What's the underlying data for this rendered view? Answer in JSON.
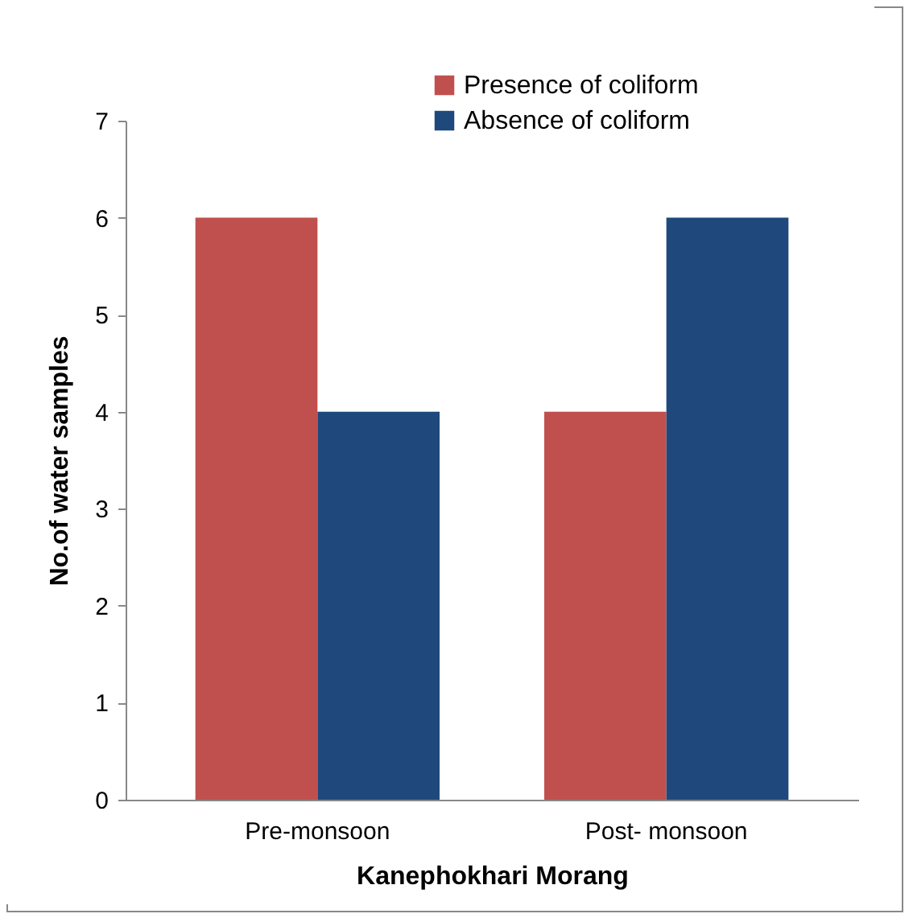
{
  "chart_data": {
    "type": "bar",
    "xlabel": "Kanephokhari Morang",
    "ylabel": "No.of water samples",
    "categories": [
      "Pre-monsoon",
      "Post- monsoon"
    ],
    "series": [
      {
        "name": "Presence of coliform",
        "color": "#c0504d",
        "values": [
          6,
          4
        ]
      },
      {
        "name": "Absence of coliform",
        "color": "#1f497d",
        "values": [
          4,
          6
        ]
      }
    ],
    "ylim": [
      0,
      7
    ],
    "yticks": [
      0,
      1,
      2,
      3,
      4,
      5,
      6,
      7
    ],
    "grid": false,
    "legend": "top right"
  }
}
